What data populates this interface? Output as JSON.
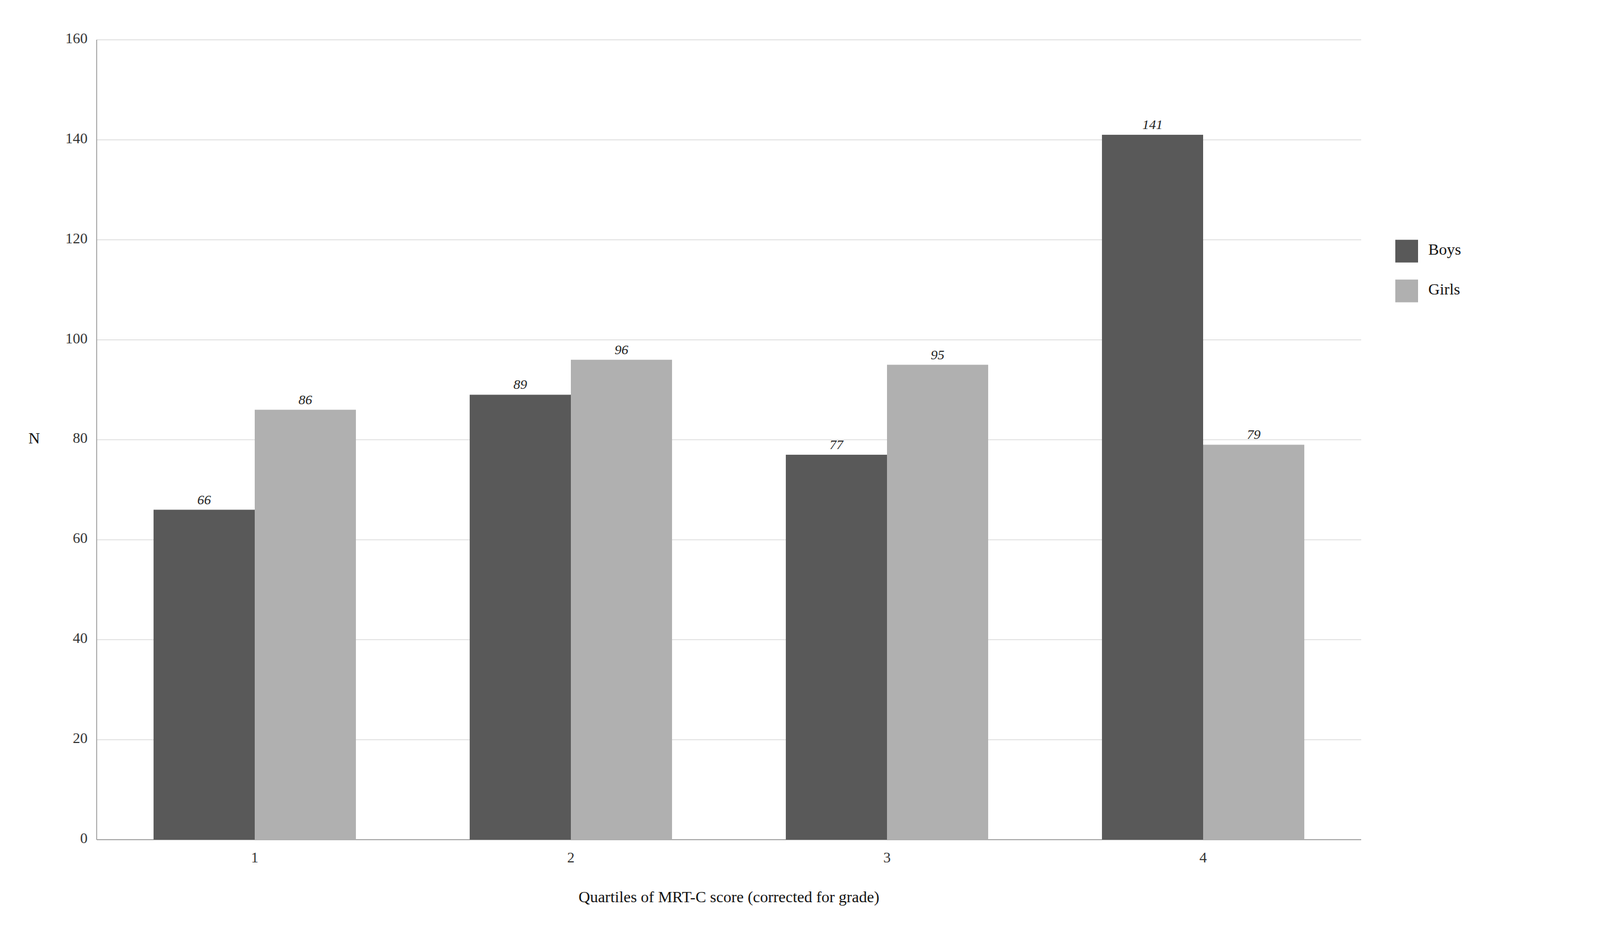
{
  "chart_data": {
    "type": "bar",
    "categories": [
      "1",
      "2",
      "3",
      "4"
    ],
    "series": [
      {
        "name": "Boys",
        "color": "#595959",
        "values": [
          66,
          89,
          77,
          141
        ]
      },
      {
        "name": "Girls",
        "color": "#b0b0b0",
        "values": [
          86,
          96,
          95,
          79
        ]
      }
    ],
    "xlabel": "Quartiles of MRT-C score (corrected for grade)",
    "ylabel": "N",
    "ylim": [
      0,
      160
    ],
    "yticks": [
      0,
      20,
      40,
      60,
      80,
      100,
      120,
      140,
      160
    ],
    "grid": true,
    "legend": "right",
    "data_labels": true
  }
}
